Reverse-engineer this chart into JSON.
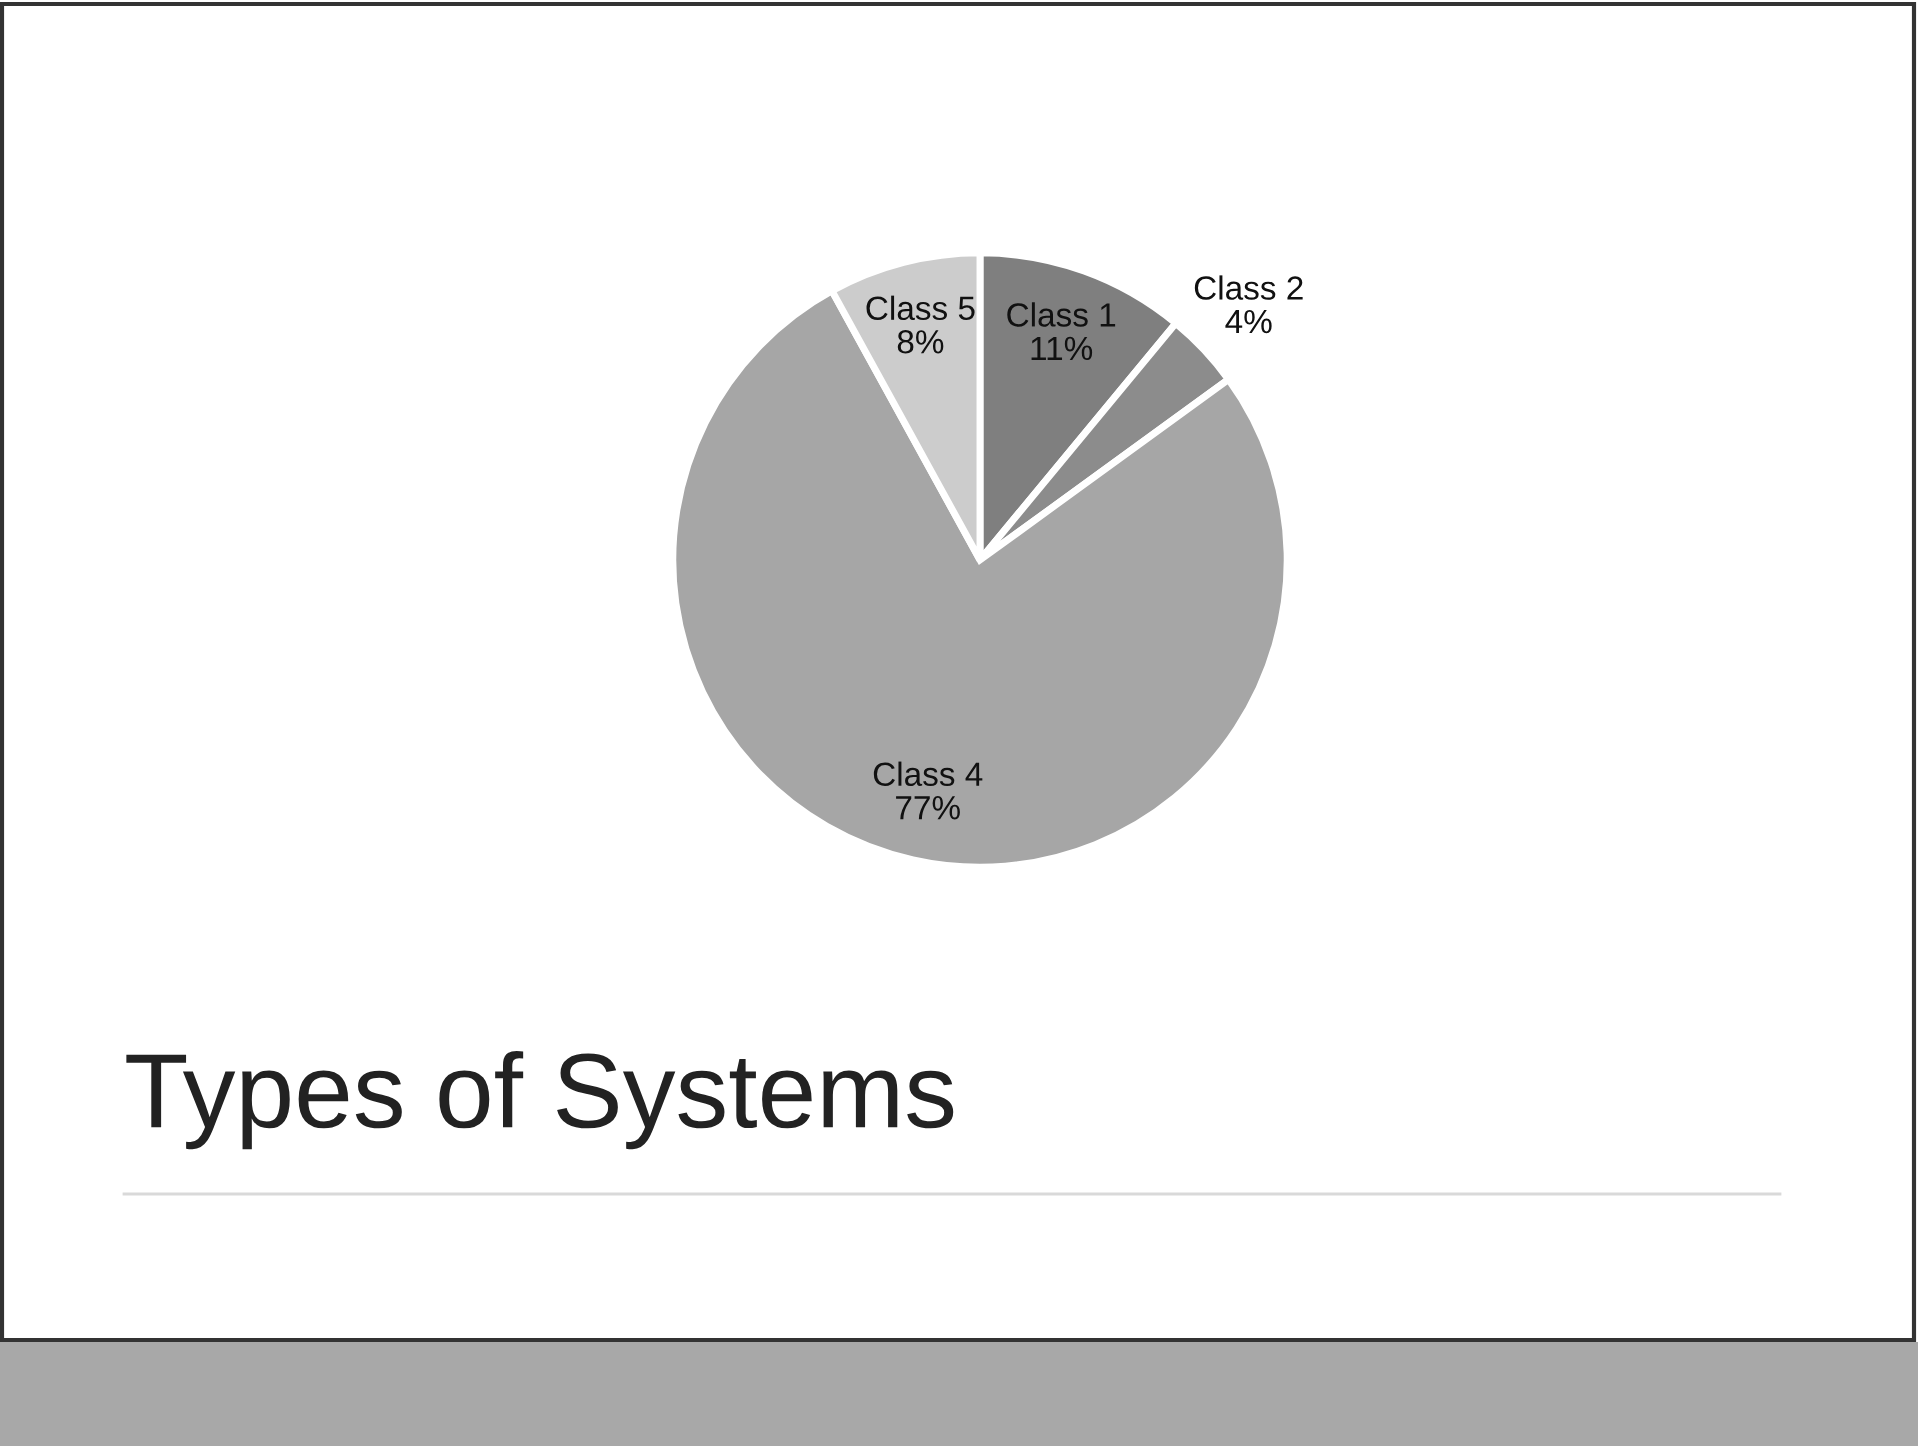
{
  "chart_data": {
    "type": "pie",
    "title": "Types of Systems",
    "categories": [
      "Class 1",
      "Class 2",
      "Class 4",
      "Class 5"
    ],
    "values": [
      11,
      4,
      77,
      8
    ],
    "colors": [
      "#7f7f7f",
      "#8c8c8c",
      "#a6a6a6",
      "#cccccc"
    ],
    "value_labels": [
      "11%",
      "4%",
      "77%",
      "8%"
    ],
    "legend": false
  }
}
